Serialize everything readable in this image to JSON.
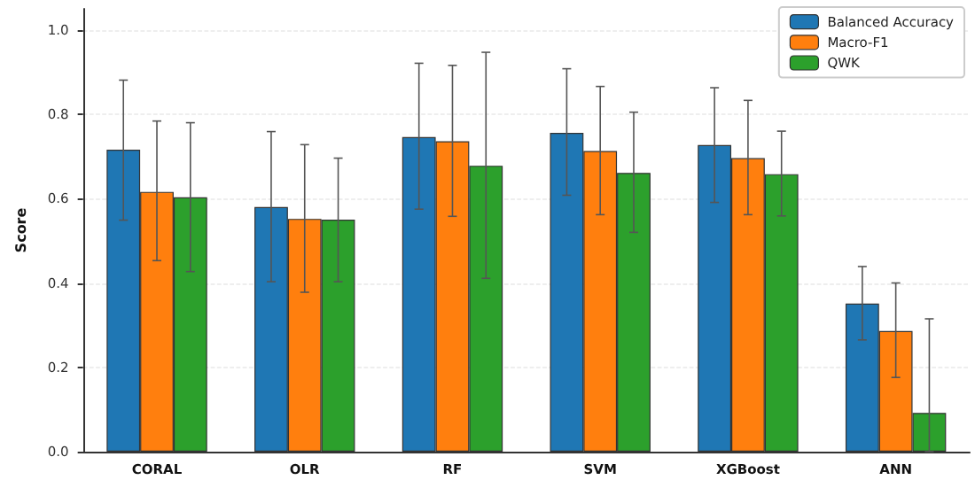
{
  "chart_data": {
    "type": "bar",
    "ylabel": "Score",
    "categories": [
      "CORAL",
      "OLR",
      "RF",
      "SVM",
      "XGBoost",
      "ANN"
    ],
    "series": [
      {
        "name": "Balanced Accuracy",
        "color": "#1f77b4",
        "values": [
          0.716,
          0.58,
          0.746,
          0.756,
          0.727,
          0.351
        ],
        "errors": [
          [
            0.549,
            0.881
          ],
          [
            0.403,
            0.759
          ],
          [
            0.575,
            0.921
          ],
          [
            0.608,
            0.908
          ],
          [
            0.591,
            0.863
          ],
          [
            0.265,
            0.439
          ]
        ]
      },
      {
        "name": "Macro-F1",
        "color": "#ff7f0e",
        "values": [
          0.616,
          0.552,
          0.736,
          0.713,
          0.696,
          0.286
        ],
        "errors": [
          [
            0.453,
            0.784
          ],
          [
            0.378,
            0.728
          ],
          [
            0.558,
            0.916
          ],
          [
            0.562,
            0.866
          ],
          [
            0.562,
            0.833
          ],
          [
            0.176,
            0.4
          ]
        ]
      },
      {
        "name": "QWK",
        "color": "#2ca02c",
        "values": [
          0.603,
          0.55,
          0.678,
          0.661,
          0.658,
          0.092
        ],
        "errors": [
          [
            0.427,
            0.78
          ],
          [
            0.403,
            0.696
          ],
          [
            0.411,
            0.947
          ],
          [
            0.52,
            0.805
          ],
          [
            0.559,
            0.76
          ],
          [
            0,
            0.315
          ]
        ]
      }
    ],
    "ylim": [
      0,
      1.05
    ],
    "yticks": [
      {
        "value": 0,
        "label": "0.0"
      },
      {
        "value": 0.2,
        "label": "0.2"
      },
      {
        "value": 0.4,
        "label": "0.4"
      },
      {
        "value": 0.6,
        "label": "0.6"
      },
      {
        "value": 0.8,
        "label": "0.8"
      },
      {
        "value": 1,
        "label": "1.0"
      }
    ],
    "grid": "y",
    "legend": "top right"
  }
}
